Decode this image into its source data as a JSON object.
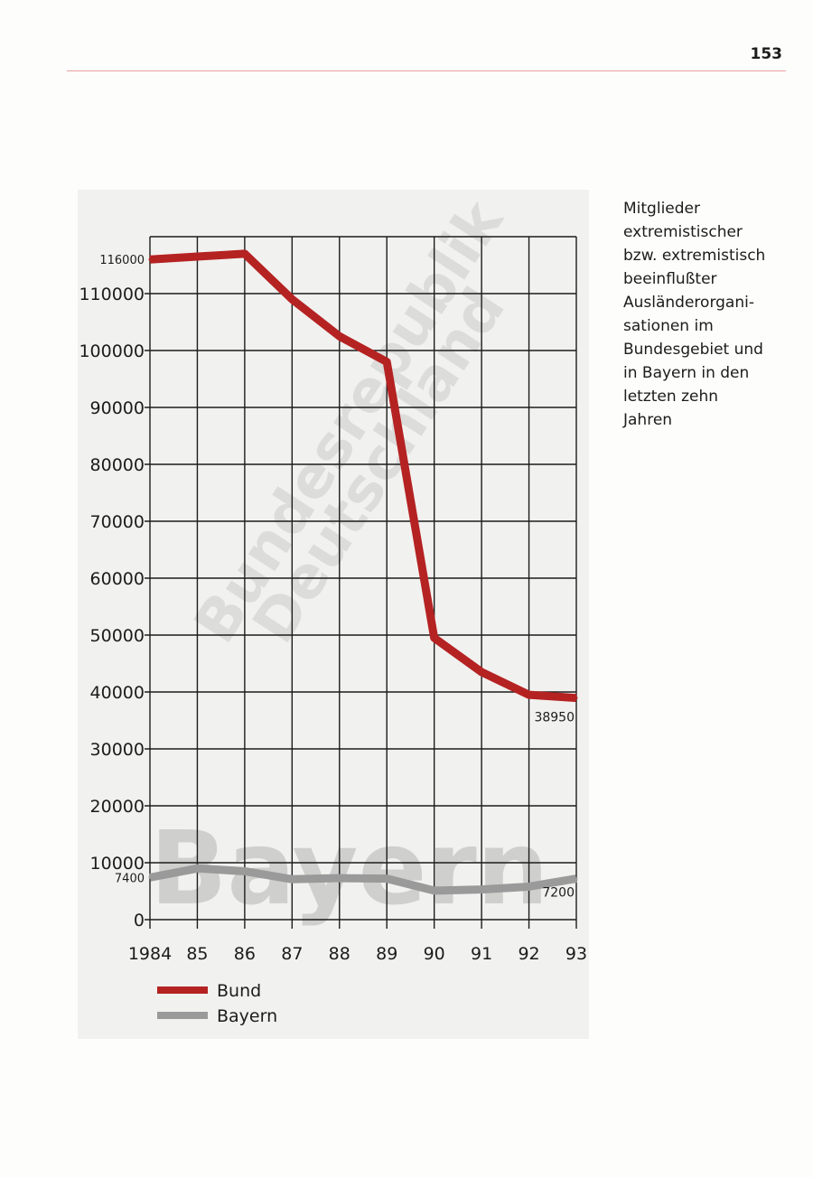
{
  "page": {
    "number": "153",
    "caption": "Mitglieder\nextremistischer\nbzw. extremistisch\nbeeinflußter\nAusländerorgani-\nsationen im\nBundesgebiet und\nin Bayern in den\nletzten zehn\nJahren"
  },
  "watermarks": {
    "line1": "Bundesrepublik",
    "line2": "Deutschland",
    "bayern": "Bayern"
  },
  "colors": {
    "bund": "#b52222",
    "bayern": "#9a9a9a",
    "grid": "#1c1c1c"
  },
  "chart_data": {
    "type": "line",
    "title": "",
    "categories": [
      "1984",
      "85",
      "86",
      "87",
      "88",
      "89",
      "90",
      "91",
      "92",
      "93"
    ],
    "x": [
      1984,
      1985,
      1986,
      1987,
      1988,
      1989,
      1990,
      1991,
      1992,
      1993
    ],
    "series": [
      {
        "name": "Bund",
        "values": [
          116000,
          116500,
          117000,
          109000,
          102500,
          98000,
          49500,
          43500,
          39500,
          38950
        ]
      },
      {
        "name": "Bayern",
        "values": [
          7400,
          9000,
          8500,
          7100,
          7300,
          7200,
          5100,
          5300,
          5800,
          7200
        ]
      }
    ],
    "y_ticks": [
      0,
      10000,
      20000,
      30000,
      40000,
      50000,
      60000,
      70000,
      80000,
      90000,
      100000,
      110000
    ],
    "y_tick_labels": [
      "0",
      "10000",
      "20000",
      "30000",
      "40000",
      "50000",
      "60000",
      "70000",
      "80000",
      "90000",
      "100000",
      "110000"
    ],
    "extra_y_labels": [
      {
        "value": 116000,
        "label": "116000"
      },
      {
        "value": 7400,
        "label": "7400"
      }
    ],
    "data_labels": [
      {
        "series": "Bund",
        "x": 1993,
        "value": 38950,
        "label": "38950"
      },
      {
        "series": "Bayern",
        "x": 1993,
        "value": 7200,
        "label": "7200"
      }
    ],
    "ylim": [
      0,
      120000
    ],
    "grid": true,
    "legend": {
      "position": "bottom-left",
      "entries": [
        "Bund",
        "Bayern"
      ]
    }
  }
}
